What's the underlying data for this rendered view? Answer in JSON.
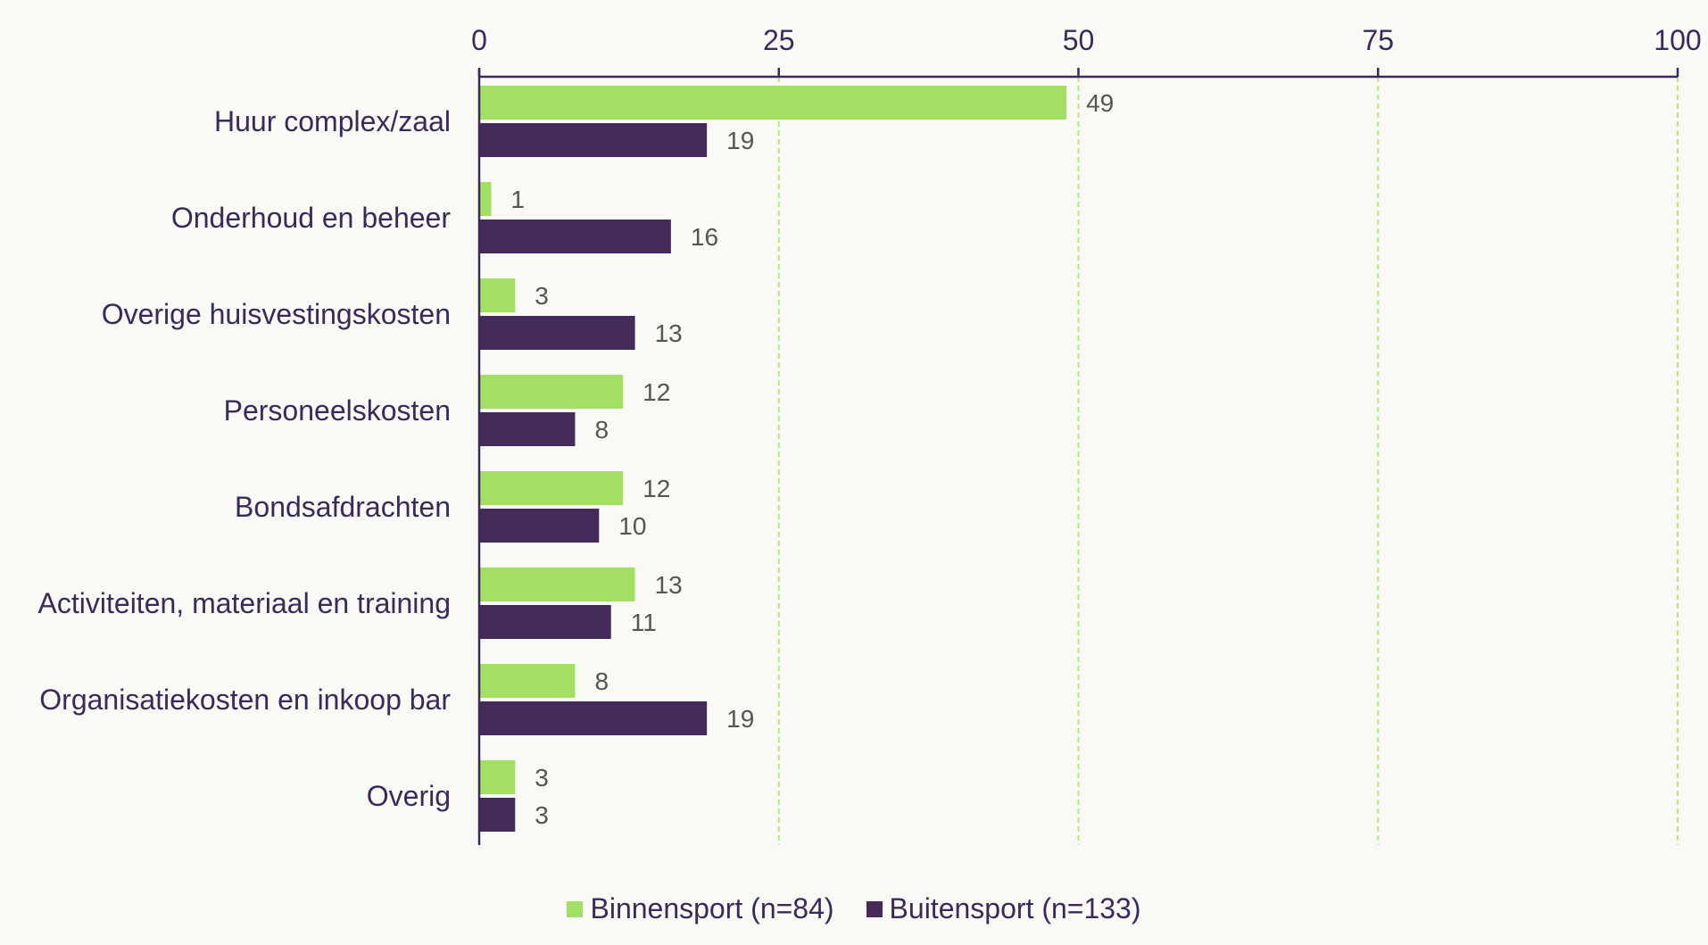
{
  "chart_data": {
    "type": "bar",
    "orientation": "horizontal",
    "categories": [
      "Huur complex/zaal",
      "Onderhoud en beheer",
      "Overige huisvestingskosten",
      "Personeelskosten",
      "Bondsafdrachten",
      "Activiteiten, materiaal en training",
      "Organisatiekosten en inkoop bar",
      "Overig"
    ],
    "series": [
      {
        "name": "Binnensport (n=84)",
        "color": "#a3df63",
        "values": [
          49,
          1,
          3,
          12,
          12,
          13,
          8,
          3
        ],
        "labels": [
          "49",
          "1",
          "3",
          "12",
          "12",
          "13",
          "8",
          "3"
        ]
      },
      {
        "name": "Buitensport (n=133)",
        "color": "#452b5a",
        "values": [
          19,
          16,
          13,
          8,
          10,
          11,
          19,
          3
        ],
        "labels": [
          "19",
          "16",
          "13",
          "8",
          "10",
          "11",
          "19",
          "3"
        ]
      }
    ],
    "xlim": [
      0,
      100
    ],
    "xticks": [
      "0",
      "25",
      "50",
      "75",
      "100"
    ],
    "xtick_values": [
      0,
      25,
      50,
      75,
      100
    ],
    "grid": true,
    "grid_color": "#b8e87a",
    "axis_color": "#3a2a5a",
    "legend_position": "bottom"
  }
}
